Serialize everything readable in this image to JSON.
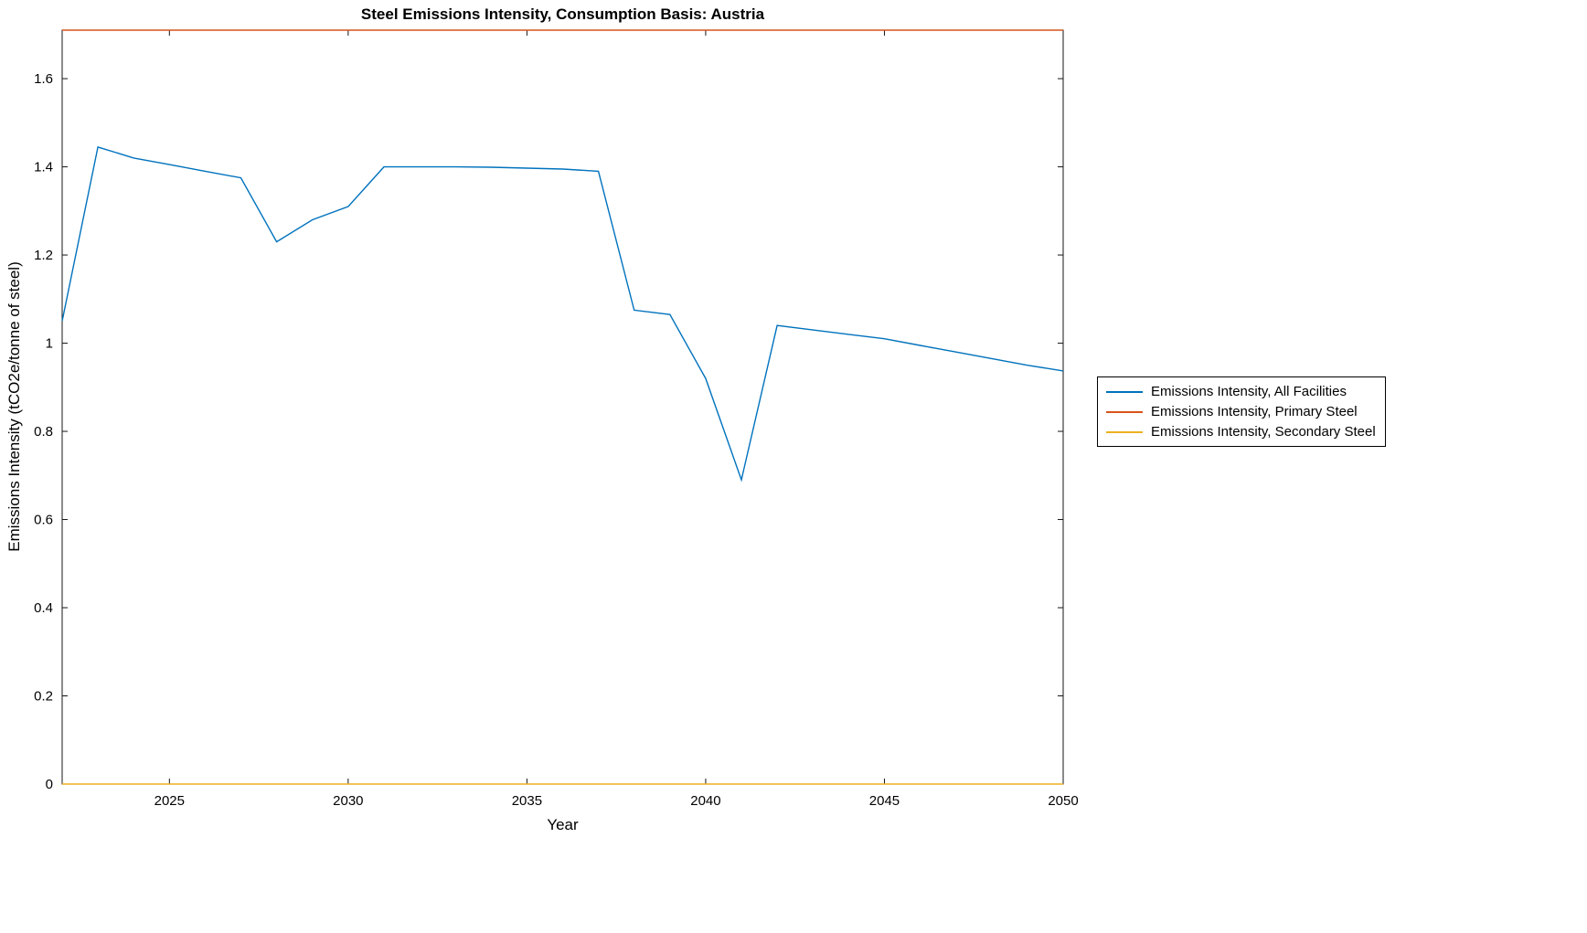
{
  "chart_data": {
    "type": "line",
    "title": "Steel Emissions Intensity, Consumption Basis: Austria",
    "xlabel": "Year",
    "ylabel": "Emissions Intensity (tCO2e/tonne of steel)",
    "xlim": [
      2022,
      2050
    ],
    "ylim": [
      0,
      1.71
    ],
    "xticks": [
      2025,
      2030,
      2035,
      2040,
      2045,
      2050
    ],
    "yticks": [
      0,
      0.2,
      0.4,
      0.6,
      0.8,
      1,
      1.2,
      1.4,
      1.6
    ],
    "ytick_labels": [
      "0",
      "0.2",
      "0.4",
      "0.6",
      "0.8",
      "1",
      "1.2",
      "1.4",
      "1.6"
    ],
    "grid": false,
    "legend_position": "outside-right",
    "x": [
      2022,
      2023,
      2024,
      2025,
      2026,
      2027,
      2028,
      2029,
      2030,
      2031,
      2032,
      2033,
      2034,
      2035,
      2036,
      2037,
      2038,
      2039,
      2040,
      2041,
      2042,
      2043,
      2044,
      2045,
      2046,
      2047,
      2048,
      2049,
      2050
    ],
    "series": [
      {
        "name": "Emissions Intensity, All Facilities",
        "color": "#0072BD",
        "values": [
          1.05,
          1.445,
          1.42,
          1.405,
          1.39,
          1.375,
          1.23,
          1.28,
          1.31,
          1.4,
          1.4,
          1.4,
          1.399,
          1.397,
          1.395,
          1.39,
          1.075,
          1.065,
          0.92,
          0.69,
          1.04,
          1.03,
          1.02,
          1.01,
          0.995,
          0.98,
          0.965,
          0.95,
          0.937
        ]
      },
      {
        "name": "Emissions Intensity, Primary Steel",
        "color": "#D95319",
        "values": [
          1.71,
          1.71,
          1.71,
          1.71,
          1.71,
          1.71,
          1.71,
          1.71,
          1.71,
          1.71,
          1.71,
          1.71,
          1.71,
          1.71,
          1.71,
          1.71,
          1.71,
          1.71,
          1.71,
          1.71,
          1.71,
          1.71,
          1.71,
          1.71,
          1.71,
          1.71,
          1.71,
          1.71,
          1.71
        ]
      },
      {
        "name": "Emissions Intensity, Secondary Steel",
        "color": "#EDB120",
        "values": [
          0,
          0,
          0,
          0,
          0,
          0,
          0,
          0,
          0,
          0,
          0,
          0,
          0,
          0,
          0,
          0,
          0,
          0,
          0,
          0,
          0,
          0,
          0,
          0,
          0,
          0,
          0,
          0,
          0
        ]
      }
    ]
  }
}
